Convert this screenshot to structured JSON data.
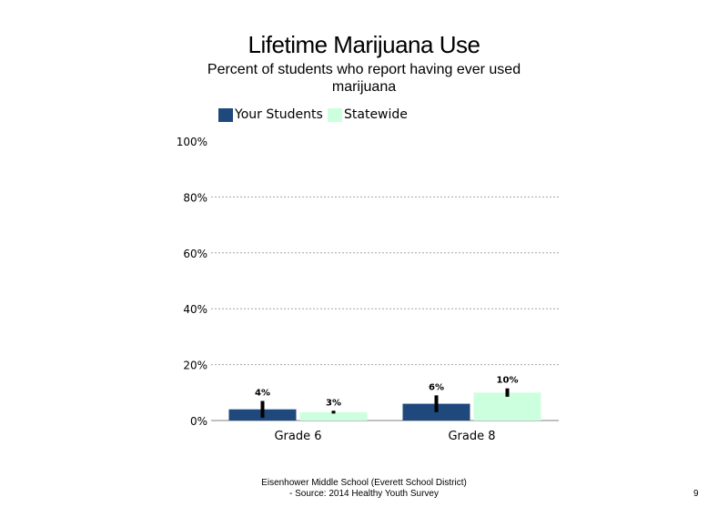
{
  "chart_data": {
    "type": "bar",
    "title": "Lifetime Marijuana Use",
    "subtitle": "Percent of students who report having ever used marijuana",
    "categories": [
      "Grade 6",
      "Grade 8"
    ],
    "series": [
      {
        "name": "Your Students",
        "color": "#1f497d",
        "values": [
          4,
          6
        ],
        "labels": [
          "4%",
          "6%"
        ],
        "error": [
          [
            1,
            7
          ],
          [
            3,
            9
          ]
        ]
      },
      {
        "name": "Statewide",
        "color": "#ccffdd",
        "values": [
          3,
          10
        ],
        "labels": [
          "3%",
          "10%"
        ],
        "error": [
          [
            2.5,
            3.5
          ],
          [
            8.5,
            11.5
          ]
        ]
      }
    ],
    "ylim": [
      0,
      100
    ],
    "yticks": [
      "0%",
      "20%",
      "40%",
      "60%",
      "80%",
      "100%"
    ],
    "ytick_values": [
      0,
      20,
      40,
      60,
      80,
      100
    ],
    "grid": true,
    "legend_position": "top-left"
  },
  "footer": {
    "line1": "Eisenhower Middle School (Everett School District)",
    "line2": "- Source: 2014 Healthy  Youth Survey"
  },
  "page_number": "9"
}
